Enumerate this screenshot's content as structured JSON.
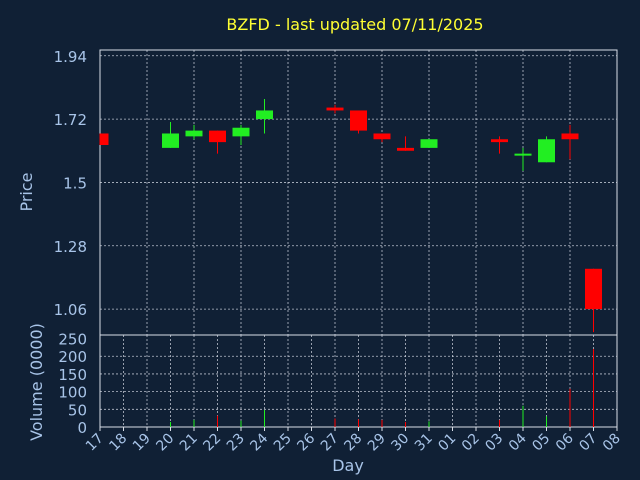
{
  "chart_data": {
    "type": "candlestick",
    "title": "BZFD - last updated 07/11/2025",
    "xlabel": "Day",
    "price_ylabel": "Price",
    "volume_ylabel": "Volume (0000)",
    "price_ylim": [
      0.97,
      1.96
    ],
    "price_ticks": [
      "1.94",
      "1.72",
      "1.5",
      "1.28",
      "1.06"
    ],
    "volume_ylim": [
      0,
      260
    ],
    "volume_ticks": [
      "250",
      "200",
      "150",
      "100",
      "50",
      "0"
    ],
    "categories": [
      "17",
      "18",
      "19",
      "20",
      "21",
      "22",
      "23",
      "24",
      "25",
      "26",
      "27",
      "28",
      "29",
      "30",
      "31",
      "01",
      "02",
      "03",
      "04",
      "05",
      "06",
      "07",
      "08"
    ],
    "colors": {
      "up": "#22ee22",
      "down": "#ff0000"
    },
    "candles": [
      {
        "day": "17",
        "open": 1.67,
        "high": 1.67,
        "low": 1.63,
        "close": 1.63,
        "volume": 0
      },
      {
        "day": "20",
        "open": 1.62,
        "high": 1.71,
        "low": 1.62,
        "close": 1.67,
        "volume": 14
      },
      {
        "day": "21",
        "open": 1.66,
        "high": 1.7,
        "low": 1.65,
        "close": 1.68,
        "volume": 20
      },
      {
        "day": "22",
        "open": 1.68,
        "high": 1.68,
        "low": 1.6,
        "close": 1.64,
        "volume": 32
      },
      {
        "day": "23",
        "open": 1.66,
        "high": 1.7,
        "low": 1.63,
        "close": 1.69,
        "volume": 18
      },
      {
        "day": "24",
        "open": 1.72,
        "high": 1.79,
        "low": 1.67,
        "close": 1.75,
        "volume": 48
      },
      {
        "day": "27",
        "open": 1.76,
        "high": 1.77,
        "low": 1.74,
        "close": 1.75,
        "volume": 24
      },
      {
        "day": "28",
        "open": 1.75,
        "high": 1.75,
        "low": 1.67,
        "close": 1.68,
        "volume": 22
      },
      {
        "day": "29",
        "open": 1.67,
        "high": 1.67,
        "low": 1.64,
        "close": 1.65,
        "volume": 20
      },
      {
        "day": "30",
        "open": 1.62,
        "high": 1.66,
        "low": 1.61,
        "close": 1.61,
        "volume": 14
      },
      {
        "day": "31",
        "open": 1.62,
        "high": 1.65,
        "low": 1.62,
        "close": 1.65,
        "volume": 16
      },
      {
        "day": "03",
        "open": 1.65,
        "high": 1.66,
        "low": 1.6,
        "close": 1.64,
        "volume": 20
      },
      {
        "day": "04",
        "open": 1.6,
        "high": 1.62,
        "low": 1.54,
        "close": 1.6,
        "volume": 60
      },
      {
        "day": "05",
        "open": 1.57,
        "high": 1.66,
        "low": 1.57,
        "close": 1.65,
        "volume": 30
      },
      {
        "day": "06",
        "open": 1.67,
        "high": 1.7,
        "low": 1.58,
        "close": 1.65,
        "volume": 108
      },
      {
        "day": "07",
        "open": 1.2,
        "high": 1.2,
        "low": 0.98,
        "close": 1.06,
        "volume": 220
      }
    ]
  }
}
